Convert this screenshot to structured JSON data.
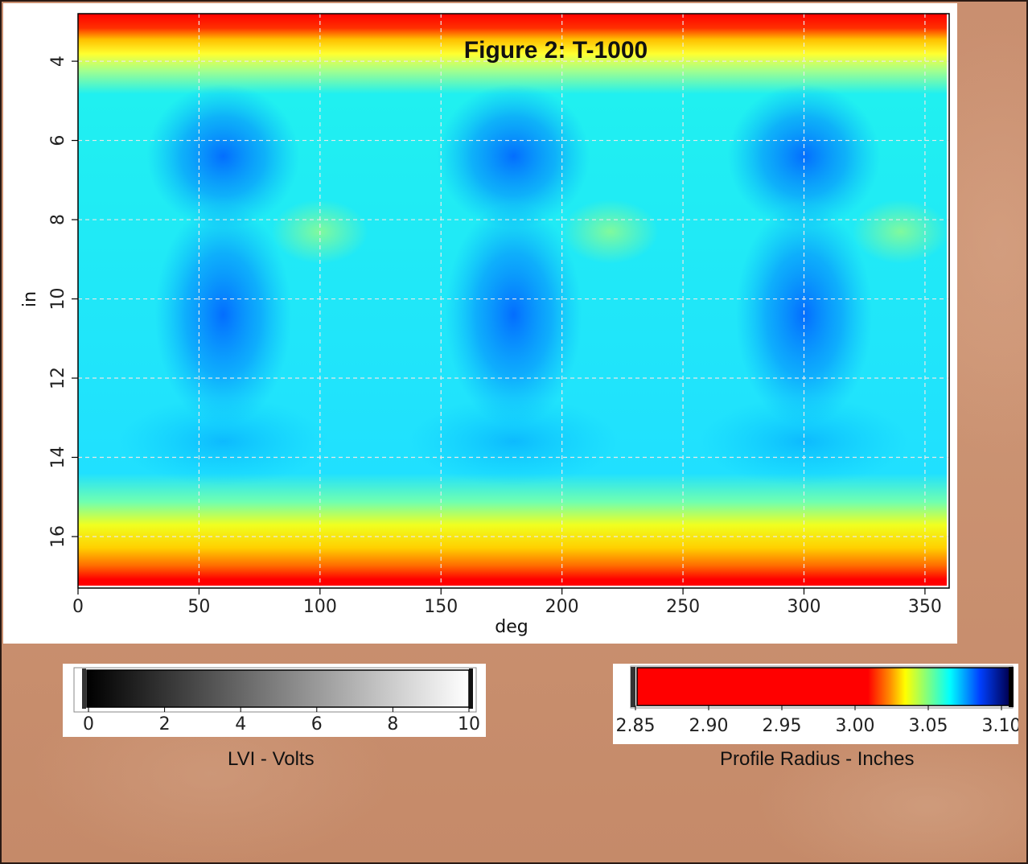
{
  "chart_data": {
    "type": "heatmap",
    "title": "Figure 2: T-1000",
    "xlabel": "deg",
    "ylabel": "in",
    "xlim": [
      0,
      360
    ],
    "ylim": [
      17.3,
      2.8
    ],
    "x_ticks": [
      0,
      50,
      100,
      150,
      200,
      250,
      300,
      350
    ],
    "x_tick_labels": [
      "0",
      "50",
      "100",
      "150",
      "200",
      "250",
      "300",
      "350"
    ],
    "y_ticks": [
      4,
      6,
      8,
      10,
      12,
      14,
      16
    ],
    "y_tick_labels": [
      "4",
      "6",
      "8",
      "10",
      "12",
      "14",
      "16"
    ],
    "grid": true,
    "colormap": [
      "#ff0000",
      "#ffd000",
      "#ffff00",
      "#80ff80",
      "#00e0ff",
      "#00a0ff",
      "#0000ff",
      "#000040"
    ],
    "value_range_inches": [
      2.85,
      3.1
    ],
    "dark_regions_deg": [
      60,
      180,
      300
    ],
    "edge_bands_in": [
      3.0,
      17.1
    ]
  },
  "colorbars": {
    "lvi": {
      "caption": "LVI - Volts",
      "ticks": [
        "0",
        "2",
        "4",
        "6",
        "8",
        "10"
      ],
      "values": [
        0,
        2,
        4,
        6,
        8,
        10
      ],
      "colors": [
        "#000000",
        "#ffffff"
      ]
    },
    "radius": {
      "caption": "Profile Radius - Inches",
      "ticks": [
        "2.85",
        "2.90",
        "2.95",
        "3.00",
        "3.05",
        "3.10"
      ],
      "values": [
        2.85,
        2.9,
        2.95,
        3.0,
        3.05,
        3.1
      ],
      "colors": [
        "#ff0000",
        "#ff0000",
        "#ffff00",
        "#00ffff",
        "#0000ff",
        "#000040"
      ]
    }
  }
}
